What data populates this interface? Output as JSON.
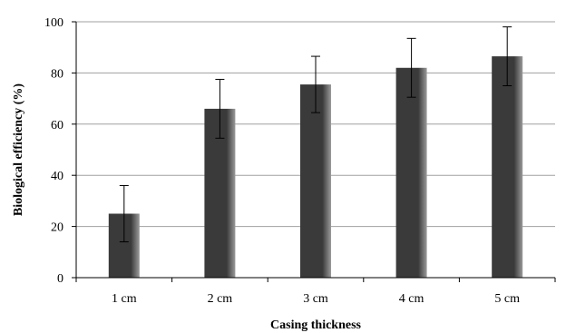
{
  "chart_data": {
    "type": "bar",
    "title": "",
    "xlabel": "Casing thickness",
    "ylabel": "Biological efficiency (%)",
    "categories": [
      "1 cm",
      "2 cm",
      "3 cm",
      "4 cm",
      "5 cm"
    ],
    "values": [
      25,
      66,
      75.5,
      82,
      86.5
    ],
    "error": [
      11,
      11.5,
      11,
      11.5,
      11.5
    ],
    "ylim": [
      0,
      100
    ],
    "yticks": [
      0,
      20,
      40,
      60,
      80,
      100
    ],
    "grid": true,
    "legend": "none",
    "colors": {
      "bar": "#3a3a3a",
      "bar_light": "#9a9a9a",
      "grid": "#a0a0a0",
      "axis": "#000000"
    }
  }
}
